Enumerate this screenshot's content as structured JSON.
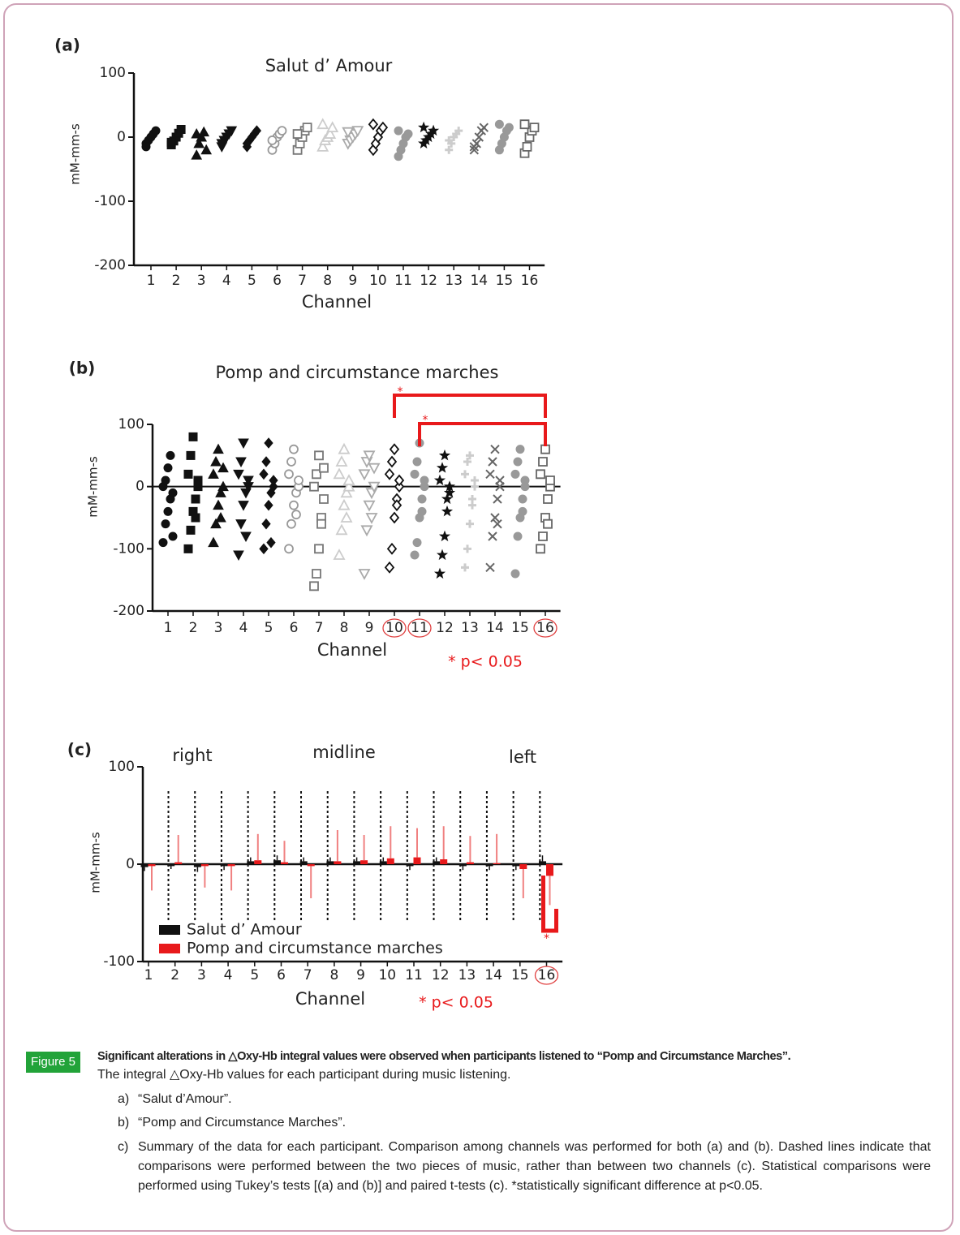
{
  "chart_data": [
    {
      "type": "strip",
      "panel": "(a)",
      "title": "Salut d’ Amour",
      "y_label": "mM-mm-s",
      "x_label": "Channel",
      "categories": [
        "1",
        "2",
        "3",
        "4",
        "5",
        "6",
        "7",
        "8",
        "9",
        "10",
        "11",
        "12",
        "13",
        "14",
        "15",
        "16"
      ],
      "values": [
        [
          -10,
          -5,
          0,
          5,
          10,
          -15
        ],
        [
          -12,
          -6,
          0,
          6,
          12,
          -8
        ],
        [
          -28,
          -10,
          0,
          8,
          -20,
          5
        ],
        [
          -15,
          -5,
          0,
          5,
          10,
          -10
        ],
        [
          -15,
          -5,
          0,
          5,
          10,
          -10
        ],
        [
          -20,
          -10,
          0,
          5,
          10,
          -5
        ],
        [
          -20,
          -10,
          0,
          10,
          15,
          5
        ],
        [
          -15,
          -5,
          0,
          5,
          15,
          20
        ],
        [
          -10,
          -5,
          0,
          5,
          10,
          8
        ],
        [
          -20,
          -10,
          0,
          10,
          15,
          20
        ],
        [
          -30,
          -20,
          -10,
          0,
          5,
          10
        ],
        [
          -10,
          -5,
          0,
          5,
          10,
          15
        ],
        [
          -20,
          -10,
          0,
          5,
          10,
          -5
        ],
        [
          -20,
          -10,
          0,
          10,
          15,
          -15
        ],
        [
          -20,
          -10,
          0,
          10,
          15,
          20
        ],
        [
          -25,
          -15,
          0,
          10,
          15,
          20
        ]
      ],
      "colors": [
        "#111",
        "#111",
        "#111",
        "#111",
        "#111",
        "#999",
        "#777",
        "#ccc",
        "#aaa",
        "#111",
        "#999",
        "#111",
        "#ccc",
        "#666",
        "#999",
        "#666"
      ],
      "markers": [
        "circle",
        "square",
        "triangle",
        "triangle-down",
        "diamond",
        "circle-open",
        "square-open",
        "triangle-open",
        "triangle-down-open",
        "diamond-open",
        "circle",
        "star",
        "plus",
        "cross",
        "circle",
        "square-open"
      ],
      "ylim": [
        -200,
        100
      ],
      "yticks": [
        -200,
        -100,
        0,
        100
      ]
    },
    {
      "type": "strip",
      "panel": "(b)",
      "title": "Pomp and circumstance marches",
      "y_label": "mM-mm-s",
      "x_label": "Channel",
      "categories": [
        "1",
        "2",
        "3",
        "4",
        "5",
        "6",
        "7",
        "8",
        "9",
        "10",
        "11",
        "12",
        "13",
        "14",
        "15",
        "16"
      ],
      "values": [
        [
          -90,
          -60,
          -40,
          -20,
          -10,
          0,
          10,
          30,
          50,
          -80
        ],
        [
          -100,
          -70,
          -40,
          -20,
          0,
          20,
          50,
          80,
          -50,
          10
        ],
        [
          -90,
          -60,
          -30,
          -10,
          0,
          20,
          40,
          60,
          -50,
          30
        ],
        [
          -110,
          -60,
          -30,
          -10,
          0,
          20,
          40,
          70,
          -80,
          10
        ],
        [
          -100,
          -60,
          -30,
          -10,
          0,
          20,
          40,
          70,
          -90,
          10
        ],
        [
          -100,
          -60,
          -30,
          -10,
          0,
          20,
          40,
          60,
          -45,
          10
        ],
        [
          -160,
          -140,
          -100,
          -50,
          -20,
          0,
          20,
          50,
          -60,
          30
        ],
        [
          -110,
          -70,
          -30,
          -10,
          0,
          20,
          40,
          60,
          -50,
          10
        ],
        [
          -140,
          -70,
          -30,
          -10,
          0,
          20,
          40,
          50,
          -50,
          30
        ],
        [
          -130,
          -100,
          -50,
          -20,
          0,
          20,
          40,
          60,
          -30,
          10
        ],
        [
          -110,
          -90,
          -50,
          -20,
          0,
          20,
          40,
          70,
          -40,
          10
        ],
        [
          -140,
          -110,
          -80,
          -40,
          -10,
          10,
          30,
          50,
          -20,
          0
        ],
        [
          -130,
          -100,
          -60,
          -30,
          0,
          20,
          40,
          50,
          -20,
          10
        ],
        [
          -130,
          -80,
          -50,
          -20,
          0,
          20,
          40,
          60,
          -60,
          10
        ],
        [
          -140,
          -80,
          -50,
          -20,
          0,
          20,
          40,
          60,
          -40,
          10
        ],
        [
          -100,
          -80,
          -50,
          -20,
          0,
          20,
          40,
          60,
          -60,
          10
        ]
      ],
      "colors": [
        "#111",
        "#111",
        "#111",
        "#111",
        "#111",
        "#999",
        "#777",
        "#ccc",
        "#aaa",
        "#111",
        "#999",
        "#111",
        "#ccc",
        "#666",
        "#999",
        "#666"
      ],
      "markers": [
        "circle",
        "square",
        "triangle",
        "triangle-down",
        "diamond",
        "circle-open",
        "square-open",
        "triangle-open",
        "triangle-down-open",
        "diamond-open",
        "circle",
        "star",
        "plus",
        "cross",
        "circle",
        "square-open"
      ],
      "ylim": [
        -200,
        100
      ],
      "yticks": [
        -200,
        -100,
        0,
        100
      ],
      "zero_line": true,
      "significance": [
        {
          "from": "10",
          "to": "16",
          "label": "*"
        },
        {
          "from": "11",
          "to": "16",
          "label": "*"
        }
      ],
      "circled": [
        "10",
        "11",
        "16"
      ],
      "note": "* p< 0.05"
    },
    {
      "type": "bar",
      "panel": "(c)",
      "y_label": "mM-mm-s",
      "x_label": "Channel",
      "region_labels": [
        "right",
        "midline",
        "left"
      ],
      "categories": [
        "1",
        "2",
        "3",
        "4",
        "5",
        "6",
        "7",
        "8",
        "9",
        "10",
        "11",
        "12",
        "13",
        "14",
        "15",
        "16"
      ],
      "series": [
        {
          "name": "Salut d’ Amour",
          "color": "#111",
          "values": [
            -3,
            -2,
            -3,
            -2,
            3,
            4,
            3,
            3,
            3,
            3,
            -2,
            3,
            -2,
            -2,
            -2,
            3
          ],
          "errors": [
            4,
            3,
            5,
            4,
            4,
            5,
            4,
            4,
            4,
            4,
            4,
            4,
            4,
            4,
            4,
            6
          ]
        },
        {
          "name": "Pomp and circumstance marches",
          "color": "#e8191b",
          "values": [
            -2,
            2,
            -2,
            -2,
            4,
            2,
            -2,
            3,
            4,
            6,
            7,
            5,
            2,
            1,
            -5,
            -12
          ],
          "errors": [
            25,
            28,
            22,
            25,
            27,
            22,
            33,
            32,
            26,
            33,
            30,
            34,
            27,
            30,
            30,
            30
          ]
        }
      ],
      "ylim": [
        -100,
        100
      ],
      "yticks": [
        -100,
        0,
        100
      ],
      "legend": "lower left",
      "significance": [
        {
          "category": "16",
          "label": "*"
        }
      ],
      "circled": [
        "16"
      ],
      "note": "* p< 0.05"
    }
  ],
  "caption": {
    "figure_label": "Figure 5",
    "heading": "Significant alterations in △Oxy-Hb integral values were observed when participants listened to “Pomp and Circumstance Marches”.",
    "text": "The integral △Oxy-Hb values for each participant during music listening.",
    "items": [
      {
        "label": "a)",
        "text": "“Salut d’Amour”."
      },
      {
        "label": "b)",
        "text": "“Pomp and Circumstance Marches”."
      },
      {
        "label": "c)",
        "text": "Summary of the data for each participant. Comparison among channels was performed for both (a) and (b). Dashed lines indicate that comparisons were performed between the two pieces of music, rather than between two channels (c). Statistical comparisons were performed using Tukey’s tests [(a) and (b)] and paired t-tests (c). *statistically significant difference at p<0.05."
      }
    ]
  }
}
